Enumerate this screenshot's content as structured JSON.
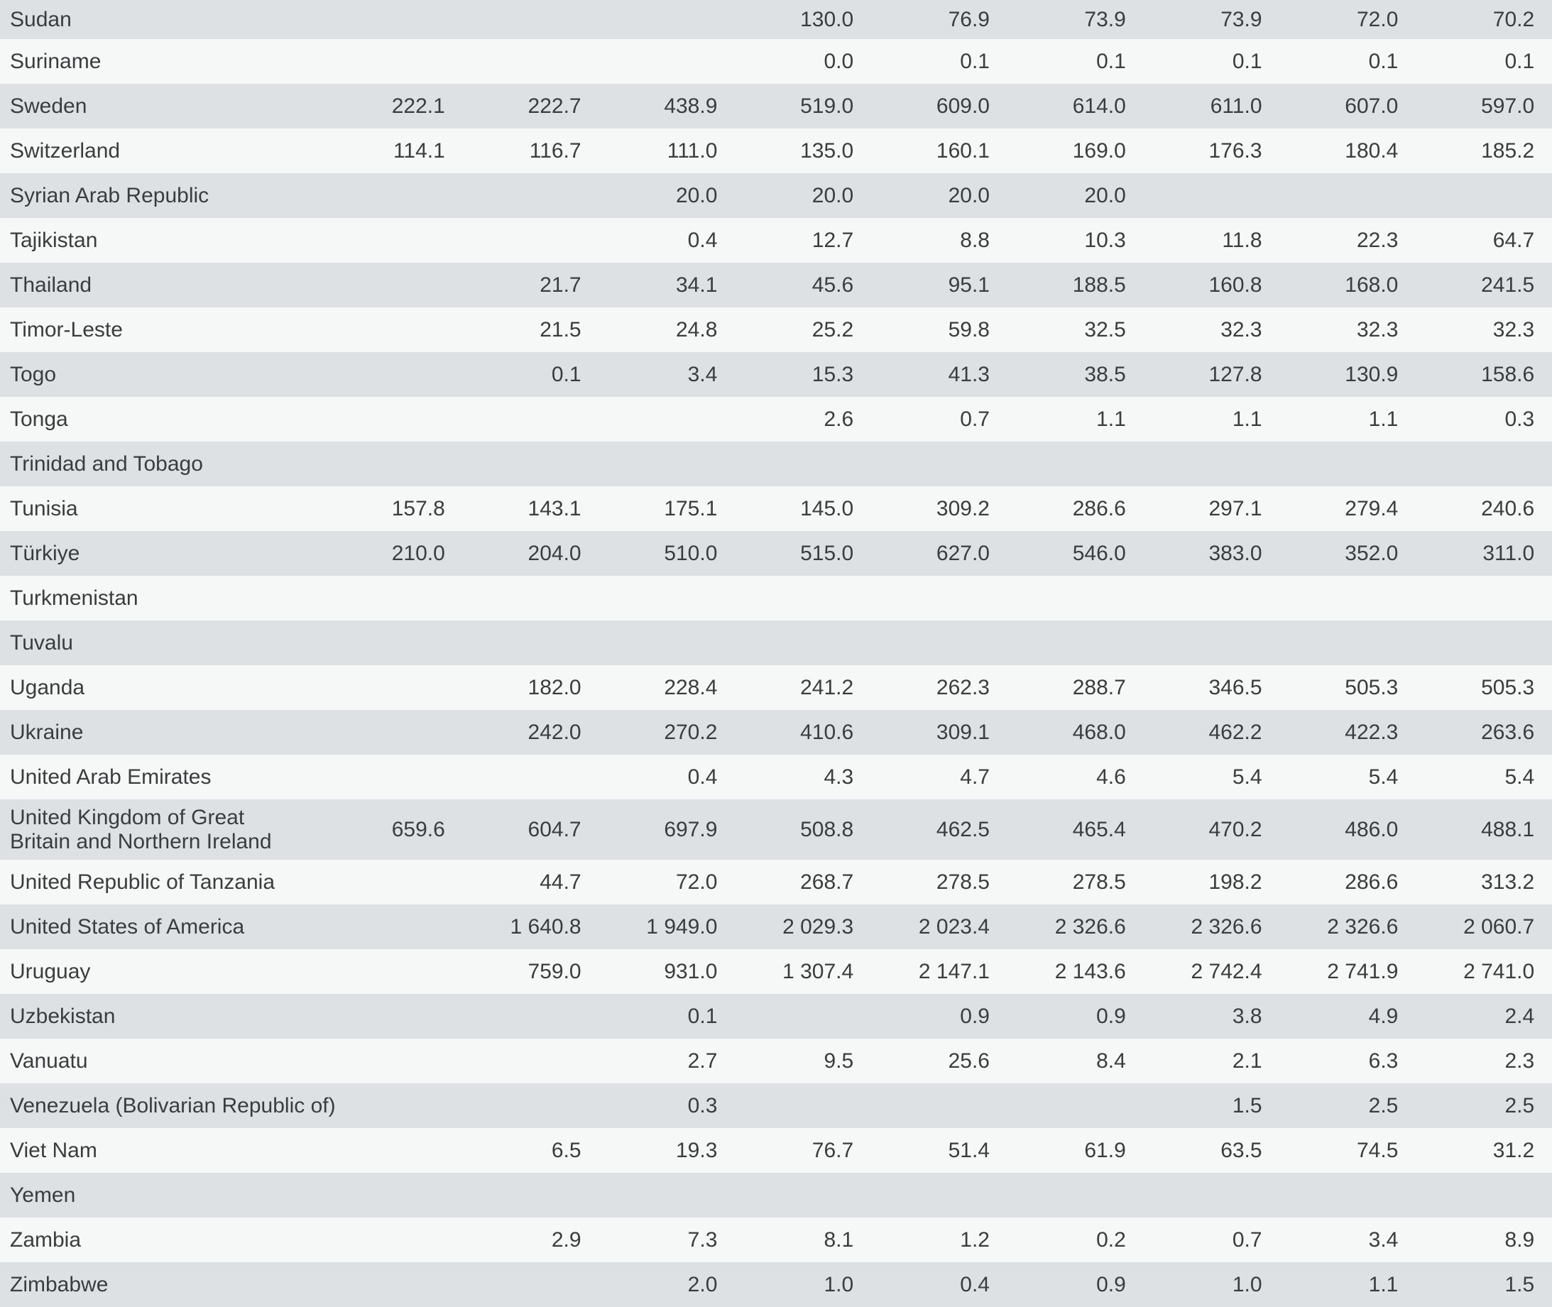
{
  "table": {
    "description": "Country data table, rows S to Z, 9 numeric year-columns, headers not visible in view",
    "number_format": "space thousands separator, one decimal",
    "rows": [
      {
        "country": "Sudan",
        "values": [
          "",
          "",
          "",
          "130.0",
          "76.9",
          "73.9",
          "73.9",
          "72.0",
          "70.2"
        ]
      },
      {
        "country": "Suriname",
        "values": [
          "",
          "",
          "",
          "0.0",
          "0.1",
          "0.1",
          "0.1",
          "0.1",
          "0.1"
        ]
      },
      {
        "country": "Sweden",
        "values": [
          "222.1",
          "222.7",
          "438.9",
          "519.0",
          "609.0",
          "614.0",
          "611.0",
          "607.0",
          "597.0"
        ]
      },
      {
        "country": "Switzerland",
        "values": [
          "114.1",
          "116.7",
          "111.0",
          "135.0",
          "160.1",
          "169.0",
          "176.3",
          "180.4",
          "185.2"
        ]
      },
      {
        "country": "Syrian Arab Republic",
        "values": [
          "",
          "",
          "20.0",
          "20.0",
          "20.0",
          "20.0",
          "",
          "",
          ""
        ]
      },
      {
        "country": "Tajikistan",
        "values": [
          "",
          "",
          "0.4",
          "12.7",
          "8.8",
          "10.3",
          "11.8",
          "22.3",
          "64.7"
        ]
      },
      {
        "country": "Thailand",
        "values": [
          "",
          "21.7",
          "34.1",
          "45.6",
          "95.1",
          "188.5",
          "160.8",
          "168.0",
          "241.5"
        ]
      },
      {
        "country": "Timor-Leste",
        "values": [
          "",
          "21.5",
          "24.8",
          "25.2",
          "59.8",
          "32.5",
          "32.3",
          "32.3",
          "32.3"
        ]
      },
      {
        "country": "Togo",
        "values": [
          "",
          "0.1",
          "3.4",
          "15.3",
          "41.3",
          "38.5",
          "127.8",
          "130.9",
          "158.6"
        ]
      },
      {
        "country": "Tonga",
        "values": [
          "",
          "",
          "",
          "2.6",
          "0.7",
          "1.1",
          "1.1",
          "1.1",
          "0.3"
        ]
      },
      {
        "country": "Trinidad and Tobago",
        "values": [
          "",
          "",
          "",
          "",
          "",
          "",
          "",
          "",
          ""
        ]
      },
      {
        "country": "Tunisia",
        "values": [
          "157.8",
          "143.1",
          "175.1",
          "145.0",
          "309.2",
          "286.6",
          "297.1",
          "279.4",
          "240.6"
        ]
      },
      {
        "country": "Türkiye",
        "values": [
          "210.0",
          "204.0",
          "510.0",
          "515.0",
          "627.0",
          "546.0",
          "383.0",
          "352.0",
          "311.0"
        ]
      },
      {
        "country": "Turkmenistan",
        "values": [
          "",
          "",
          "",
          "",
          "",
          "",
          "",
          "",
          ""
        ]
      },
      {
        "country": "Tuvalu",
        "values": [
          "",
          "",
          "",
          "",
          "",
          "",
          "",
          "",
          ""
        ]
      },
      {
        "country": "Uganda",
        "values": [
          "",
          "182.0",
          "228.4",
          "241.2",
          "262.3",
          "288.7",
          "346.5",
          "505.3",
          "505.3"
        ]
      },
      {
        "country": "Ukraine",
        "values": [
          "",
          "242.0",
          "270.2",
          "410.6",
          "309.1",
          "468.0",
          "462.2",
          "422.3",
          "263.6"
        ]
      },
      {
        "country": "United Arab Emirates",
        "values": [
          "",
          "",
          "0.4",
          "4.3",
          "4.7",
          "4.6",
          "5.4",
          "5.4",
          "5.4"
        ]
      },
      {
        "country": "United Kingdom of Great\nBritain and Northern Ireland",
        "values": [
          "659.6",
          "604.7",
          "697.9",
          "508.8",
          "462.5",
          "465.4",
          "470.2",
          "486.0",
          "488.1"
        ]
      },
      {
        "country": "United Republic of Tanzania",
        "values": [
          "",
          "44.7",
          "72.0",
          "268.7",
          "278.5",
          "278.5",
          "198.2",
          "286.6",
          "313.2"
        ]
      },
      {
        "country": "United States of America",
        "values": [
          "",
          "1 640.8",
          "1 949.0",
          "2 029.3",
          "2 023.4",
          "2 326.6",
          "2 326.6",
          "2 326.6",
          "2 060.7"
        ]
      },
      {
        "country": "Uruguay",
        "values": [
          "",
          "759.0",
          "931.0",
          "1 307.4",
          "2 147.1",
          "2 143.6",
          "2 742.4",
          "2 741.9",
          "2 741.0"
        ]
      },
      {
        "country": "Uzbekistan",
        "values": [
          "",
          "",
          "0.1",
          "",
          "0.9",
          "0.9",
          "3.8",
          "4.9",
          "2.4"
        ]
      },
      {
        "country": "Vanuatu",
        "values": [
          "",
          "",
          "2.7",
          "9.5",
          "25.6",
          "8.4",
          "2.1",
          "6.3",
          "2.3"
        ]
      },
      {
        "country": "Venezuela (Bolivarian Republic of)",
        "values": [
          "",
          "",
          "0.3",
          "",
          "",
          "",
          "1.5",
          "2.5",
          "2.5"
        ]
      },
      {
        "country": "Viet Nam",
        "values": [
          "",
          "6.5",
          "19.3",
          "76.7",
          "51.4",
          "61.9",
          "63.5",
          "74.5",
          "31.2"
        ]
      },
      {
        "country": "Yemen",
        "values": [
          "",
          "",
          "",
          "",
          "",
          "",
          "",
          "",
          ""
        ]
      },
      {
        "country": "Zambia",
        "values": [
          "",
          "2.9",
          "7.3",
          "8.1",
          "1.2",
          "0.2",
          "0.7",
          "3.4",
          "8.9"
        ]
      },
      {
        "country": "Zimbabwe",
        "values": [
          "",
          "",
          "2.0",
          "1.0",
          "0.4",
          "0.9",
          "1.0",
          "1.1",
          "1.5"
        ]
      }
    ]
  },
  "colors": {
    "stripe_dark": "#dee1e3",
    "stripe_light": "#f6f7f7",
    "text": "#3a3c3e",
    "background": "#ffffff"
  }
}
